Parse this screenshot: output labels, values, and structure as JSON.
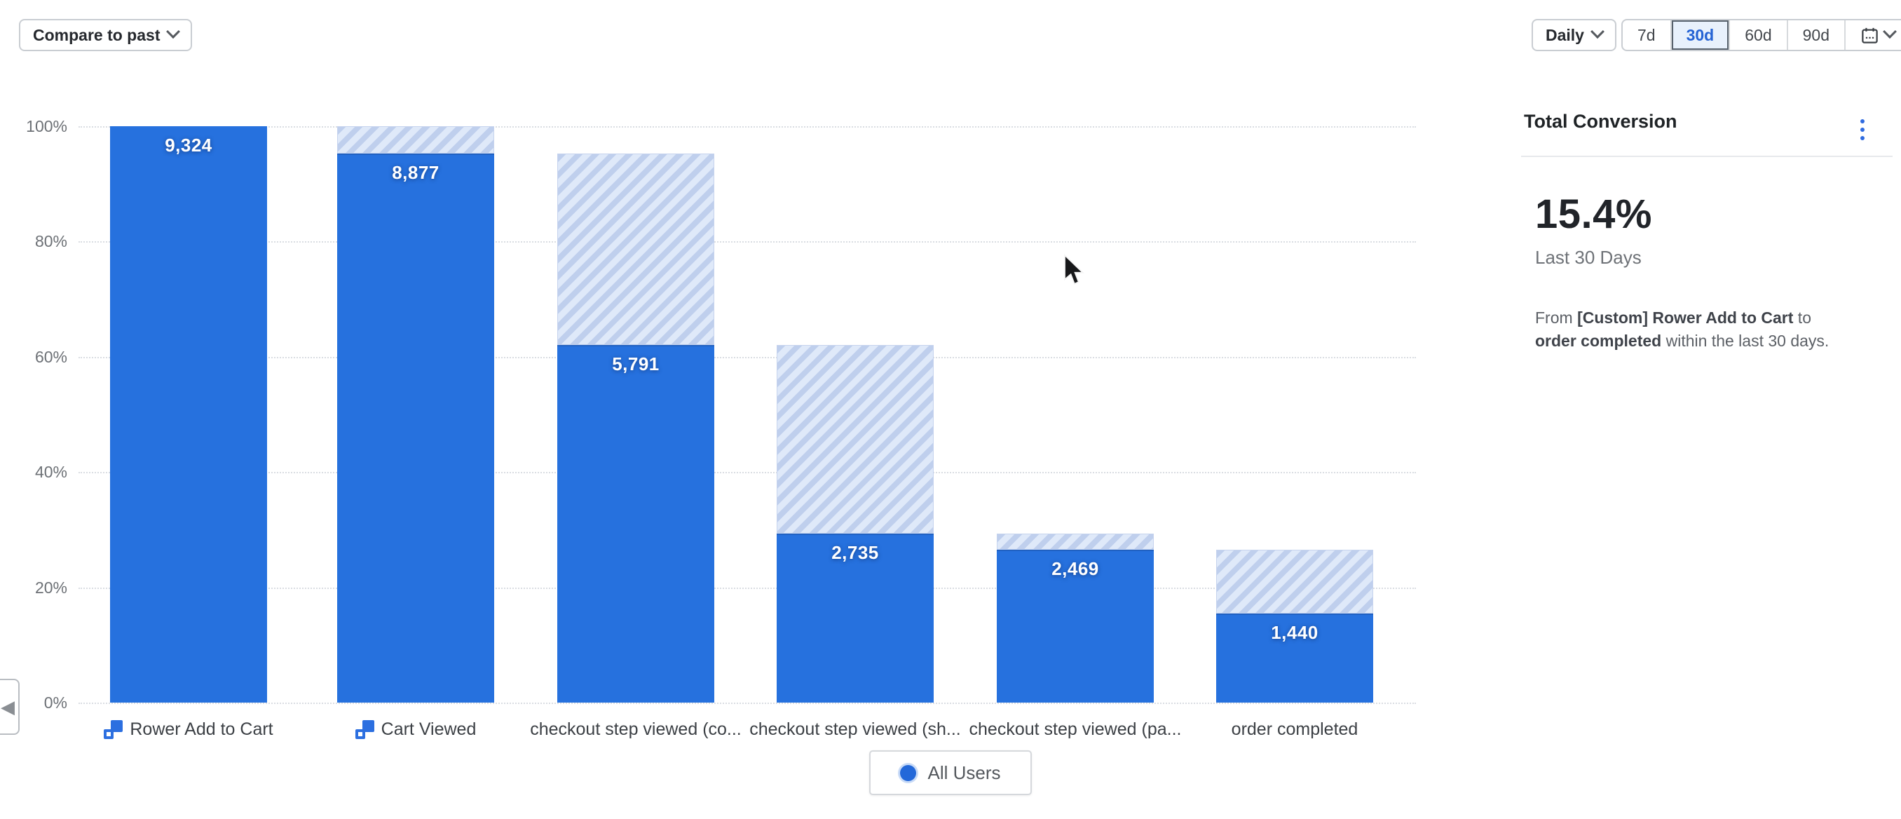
{
  "toolbar": {
    "compare_label": "Compare to past",
    "granularity_label": "Daily",
    "range_options": [
      "7d",
      "30d",
      "60d",
      "90d"
    ],
    "selected_range": "30d"
  },
  "chart_data": {
    "type": "bar",
    "subtype": "funnel-conversion",
    "categories": [
      "Rower Add to Cart",
      "Cart Viewed",
      "checkout step viewed (co...",
      "checkout step viewed (sh...",
      "checkout step viewed (pa...",
      "order completed"
    ],
    "category_icons": [
      true,
      true,
      false,
      false,
      false,
      false
    ],
    "series": [
      {
        "name": "All Users",
        "values": [
          9324,
          8877,
          5791,
          2735,
          2469,
          1440
        ],
        "value_labels": [
          "9,324",
          "8,877",
          "5,791",
          "2,735",
          "2,469",
          "1,440"
        ],
        "conversion_pct": [
          100,
          95.2,
          62.1,
          29.3,
          26.5,
          15.4
        ]
      }
    ],
    "y_ticks": [
      "100%",
      "80%",
      "60%",
      "40%",
      "20%",
      "0%"
    ],
    "ylim": [
      0,
      100
    ],
    "grid": "horizontal-dotted",
    "legend": {
      "position": "bottom",
      "items": [
        {
          "label": "All Users",
          "color": "#2368d9"
        }
      ]
    }
  },
  "summary_panel": {
    "title": "Total Conversion",
    "value": "15.4%",
    "period": "Last 30 Days",
    "description": {
      "prefix": "From ",
      "from_event": "[Custom] Rower Add to Cart",
      "middle": " to ",
      "to_event": "order completed",
      "suffix": " within the last 30 days."
    }
  },
  "misc": {
    "collapse_arrow": "◀"
  },
  "colors": {
    "bar": "#2671de",
    "bar_prev_bg": "#dfe9f9",
    "bar_prev_stripe": "#bfcfed",
    "accent": "#2563d4",
    "selected_bg": "#e8f1fc"
  }
}
